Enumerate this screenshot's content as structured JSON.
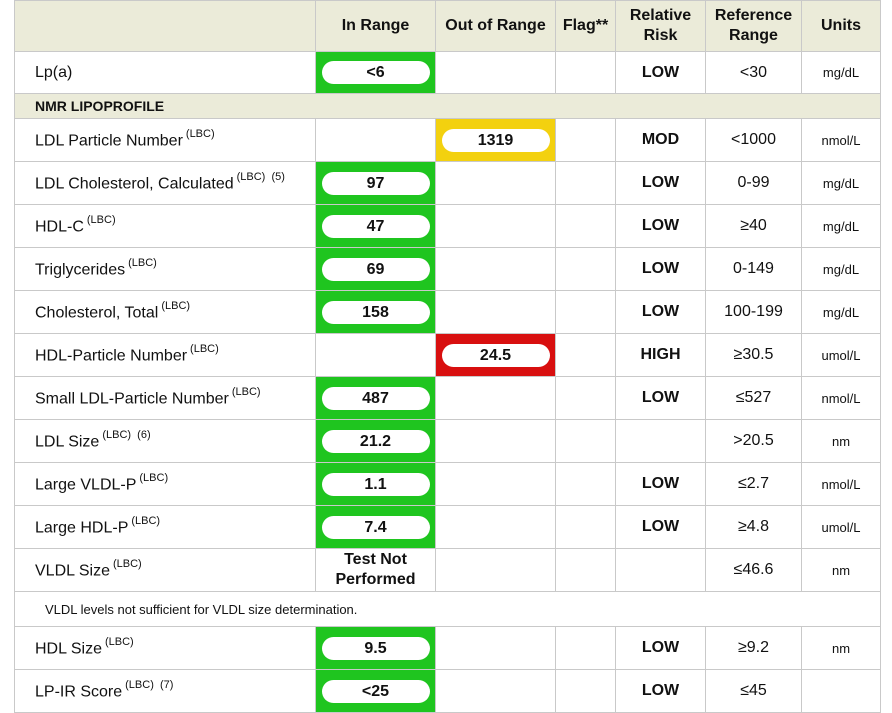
{
  "headers": {
    "name": "",
    "in_range": "In Range",
    "out_of_range": "Out of Range",
    "flag": "Flag**",
    "relative_risk": "Relative\nRisk",
    "reference_range": "Reference\nRange",
    "units": "Units"
  },
  "section_title": "NMR LIPOPROFILE",
  "note_text": "VLDL levels not sufficient for VLDL size determination.",
  "colors": {
    "in_range": "#1fc51f",
    "moderate": "#f3d10f",
    "high": "#d80f0f"
  },
  "rows": [
    {
      "name": "Lp(a)",
      "sup": "",
      "in_range": "<6",
      "out_of_range": "",
      "out_status": "",
      "flag": "",
      "risk": "LOW",
      "ref": "<30",
      "units": "mg/dL"
    },
    {
      "name": "LDL Particle Number",
      "sup": "(LBC)",
      "in_range": "",
      "out_of_range": "1319",
      "out_status": "moderate",
      "flag": "",
      "risk": "MOD",
      "ref": "<1000",
      "units": "nmol/L"
    },
    {
      "name": "LDL Cholesterol, Calculated",
      "sup": "(LBC)  (5)",
      "in_range": "97",
      "out_of_range": "",
      "out_status": "",
      "flag": "",
      "risk": "LOW",
      "ref": "0-99",
      "units": "mg/dL"
    },
    {
      "name": "HDL-C",
      "sup": "(LBC)",
      "in_range": "47",
      "out_of_range": "",
      "out_status": "",
      "flag": "",
      "risk": "LOW",
      "ref": "≥40",
      "units": "mg/dL"
    },
    {
      "name": "Triglycerides",
      "sup": "(LBC)",
      "in_range": "69",
      "out_of_range": "",
      "out_status": "",
      "flag": "",
      "risk": "LOW",
      "ref": "0-149",
      "units": "mg/dL"
    },
    {
      "name": "Cholesterol, Total",
      "sup": "(LBC)",
      "in_range": "158",
      "out_of_range": "",
      "out_status": "",
      "flag": "",
      "risk": "LOW",
      "ref": "100-199",
      "units": "mg/dL"
    },
    {
      "name": "HDL-Particle Number",
      "sup": "(LBC)",
      "in_range": "",
      "out_of_range": "24.5",
      "out_status": "high",
      "flag": "",
      "risk": "HIGH",
      "ref": "≥30.5",
      "units": "umol/L"
    },
    {
      "name": "Small LDL-Particle Number",
      "sup": "(LBC)",
      "in_range": "487",
      "out_of_range": "",
      "out_status": "",
      "flag": "",
      "risk": "LOW",
      "ref": "≤527",
      "units": "nmol/L"
    },
    {
      "name": "LDL Size",
      "sup": "(LBC)  (6)",
      "in_range": "21.2",
      "out_of_range": "",
      "out_status": "",
      "flag": "",
      "risk": "",
      "ref": ">20.5",
      "units": "nm"
    },
    {
      "name": "Large VLDL-P",
      "sup": "(LBC)",
      "in_range": "1.1",
      "out_of_range": "",
      "out_status": "",
      "flag": "",
      "risk": "LOW",
      "ref": "≤2.7",
      "units": "nmol/L"
    },
    {
      "name": "Large HDL-P",
      "sup": "(LBC)",
      "in_range": "7.4",
      "out_of_range": "",
      "out_status": "",
      "flag": "",
      "risk": "LOW",
      "ref": "≥4.8",
      "units": "umol/L"
    },
    {
      "name": "VLDL Size",
      "sup": "(LBC)",
      "in_range": "",
      "not_performed": "Test Not\nPerformed",
      "out_of_range": "",
      "out_status": "",
      "flag": "",
      "risk": "",
      "ref": "≤46.6",
      "units": "nm"
    },
    {
      "name": "HDL Size",
      "sup": "(LBC)",
      "in_range": "9.5",
      "out_of_range": "",
      "out_status": "",
      "flag": "",
      "risk": "LOW",
      "ref": "≥9.2",
      "units": "nm"
    },
    {
      "name": "LP-IR Score",
      "sup": "(LBC)  (7)",
      "in_range": "<25",
      "out_of_range": "",
      "out_status": "",
      "flag": "",
      "risk": "LOW",
      "ref": "≤45",
      "units": ""
    }
  ]
}
